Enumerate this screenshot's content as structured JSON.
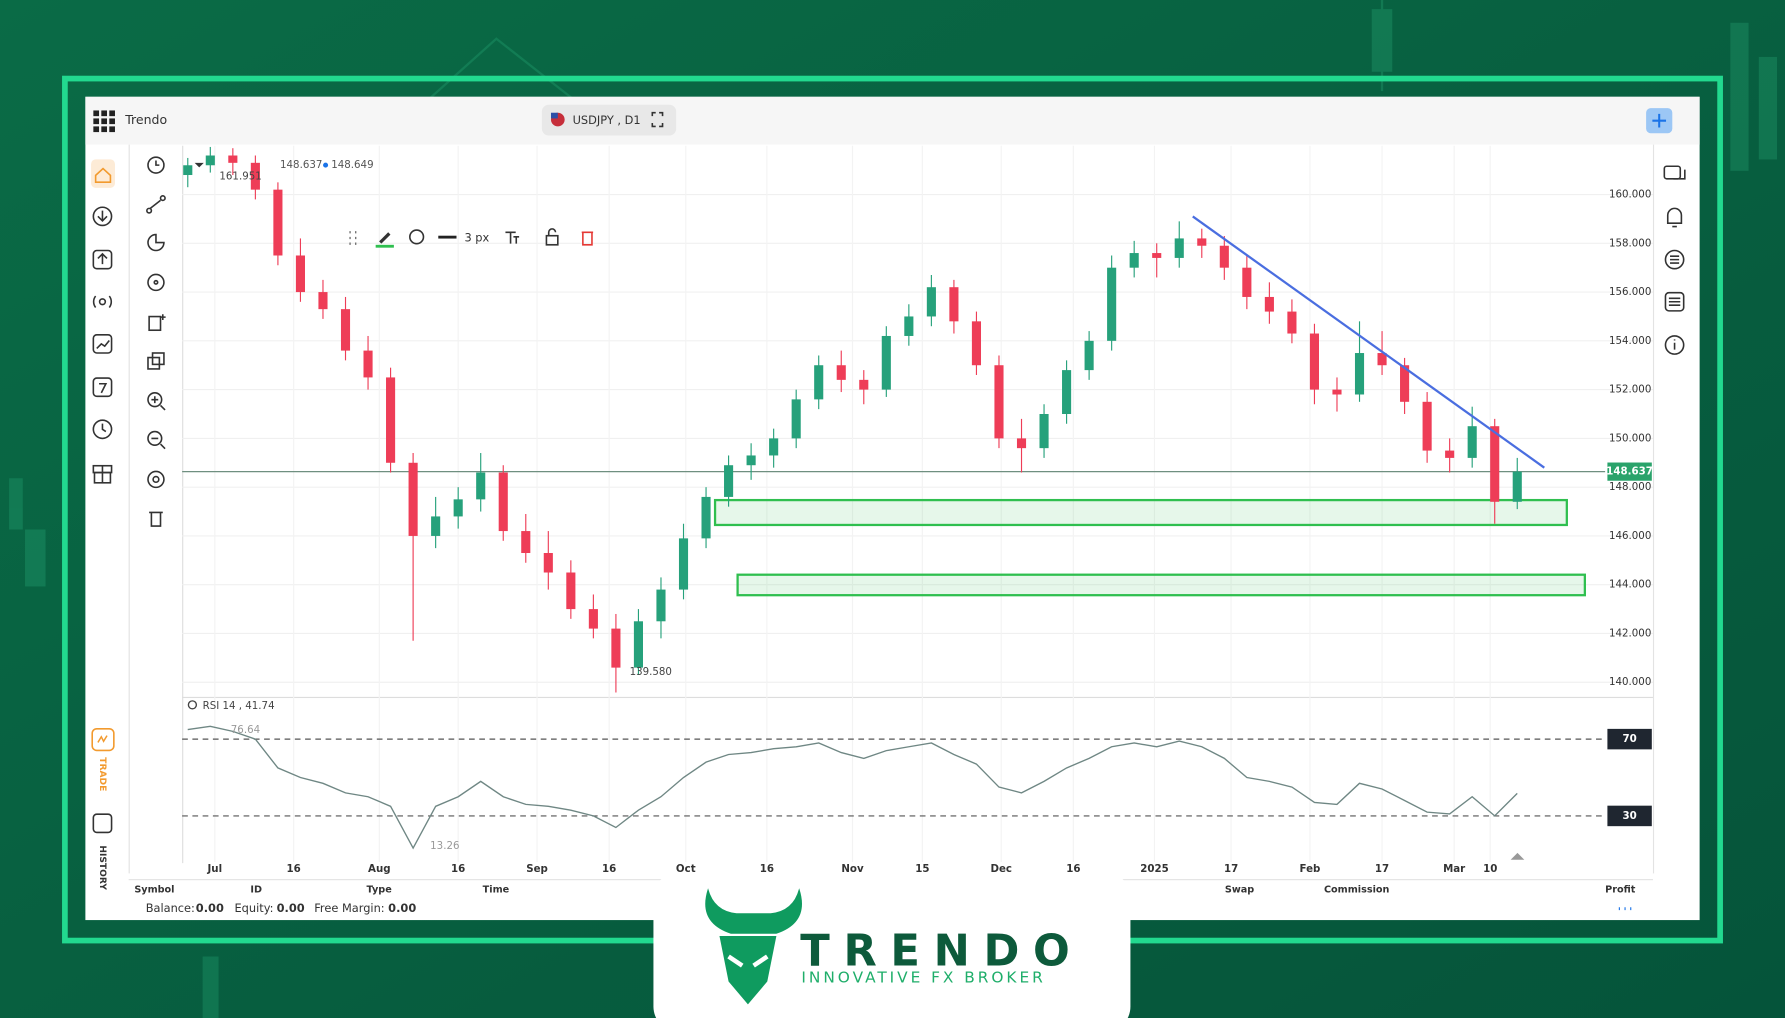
{
  "header": {
    "brand": "Trendo",
    "symbol": "USDJPY , D1"
  },
  "drawing_toolbar": {
    "line_width": "3 px"
  },
  "chart_data": [
    {
      "type": "candlestick",
      "open": [
        160.8,
        161.2,
        161.6,
        161.3,
        160.2,
        157.5,
        156.0,
        155.3,
        153.6,
        152.5,
        149.0,
        146.0,
        146.8,
        147.5,
        148.6,
        146.2,
        145.3,
        144.5,
        143.0,
        142.2,
        140.6,
        142.5,
        143.8,
        145.9,
        147.6,
        148.9,
        149.3,
        150.0,
        151.6,
        153.0,
        152.4,
        152.0,
        154.2,
        155.0,
        156.2,
        154.8,
        153.0,
        150.0,
        149.6,
        151.0,
        152.8,
        154.0,
        157.0,
        157.6,
        157.4,
        158.2,
        157.9,
        157.0,
        155.8,
        155.2,
        154.3,
        152.0,
        151.8,
        153.5,
        153.0,
        151.5,
        149.5,
        149.2,
        150.5,
        147.4
      ],
      "high": [
        161.5,
        161.951,
        161.9,
        161.6,
        160.5,
        158.2,
        156.5,
        155.8,
        154.2,
        152.9,
        149.4,
        147.6,
        148.0,
        149.4,
        148.9,
        146.9,
        146.2,
        145.0,
        143.6,
        142.8,
        143.0,
        144.3,
        146.5,
        148.0,
        149.3,
        149.8,
        150.4,
        152.0,
        153.4,
        153.6,
        152.8,
        154.6,
        155.5,
        156.7,
        156.5,
        155.2,
        153.4,
        150.8,
        151.4,
        153.2,
        154.4,
        157.5,
        158.1,
        158.0,
        158.9,
        158.6,
        158.3,
        157.5,
        156.4,
        155.7,
        154.7,
        152.5,
        154.8,
        154.4,
        153.3,
        151.9,
        150.0,
        151.3,
        150.8,
        149.2
      ],
      "low": [
        160.3,
        160.9,
        160.8,
        159.8,
        157.1,
        155.6,
        154.9,
        153.2,
        152.0,
        148.6,
        141.7,
        145.5,
        146.3,
        147.0,
        145.8,
        144.9,
        143.8,
        142.6,
        141.8,
        139.58,
        140.3,
        141.8,
        143.4,
        145.5,
        147.2,
        148.3,
        148.8,
        149.6,
        151.2,
        151.9,
        151.4,
        151.7,
        153.8,
        154.6,
        154.3,
        152.6,
        149.6,
        148.6,
        149.2,
        150.6,
        152.4,
        153.6,
        156.6,
        156.6,
        157.0,
        157.4,
        156.5,
        155.3,
        154.7,
        153.9,
        151.4,
        151.1,
        151.5,
        152.6,
        151.0,
        149.0,
        148.6,
        148.8,
        146.5,
        147.1
      ],
      "close": [
        161.2,
        161.6,
        161.3,
        160.2,
        157.5,
        156.0,
        155.3,
        153.6,
        152.5,
        149.0,
        146.0,
        146.8,
        147.5,
        148.6,
        146.2,
        145.3,
        144.5,
        143.0,
        142.2,
        140.6,
        142.5,
        143.8,
        145.9,
        147.6,
        148.9,
        149.3,
        150.0,
        151.6,
        153.0,
        152.4,
        152.0,
        154.2,
        155.0,
        156.2,
        154.8,
        153.0,
        150.0,
        149.6,
        151.0,
        152.8,
        154.0,
        157.0,
        157.6,
        157.4,
        158.2,
        157.9,
        157.0,
        155.8,
        155.2,
        154.3,
        152.0,
        151.8,
        153.5,
        153.0,
        151.5,
        149.5,
        149.2,
        150.5,
        147.4,
        148.637
      ],
      "up_color": "#26a17b",
      "down_color": "#ee3d57",
      "xlim": [
        -0.25,
        62.9
      ],
      "xticks": [
        {
          "value": 1.2,
          "label": "Jul"
        },
        {
          "value": 4.7,
          "label": "16"
        },
        {
          "value": 8.5,
          "label": "Aug"
        },
        {
          "value": 12.0,
          "label": "16"
        },
        {
          "value": 15.5,
          "label": "Sep"
        },
        {
          "value": 18.7,
          "label": "16"
        },
        {
          "value": 22.1,
          "label": "Oct"
        },
        {
          "value": 25.7,
          "label": "16"
        },
        {
          "value": 29.5,
          "label": "Nov"
        },
        {
          "value": 32.6,
          "label": "15"
        },
        {
          "value": 36.1,
          "label": "Dec"
        },
        {
          "value": 39.3,
          "label": "16"
        },
        {
          "value": 42.9,
          "label": "2025"
        },
        {
          "value": 46.3,
          "label": "17"
        },
        {
          "value": 49.8,
          "label": "Feb"
        },
        {
          "value": 53.0,
          "label": "17"
        },
        {
          "value": 56.2,
          "label": "Mar"
        },
        {
          "value": 57.8,
          "label": "10"
        }
      ],
      "ylim": [
        139.4,
        162.0
      ],
      "yticks": [
        {
          "value": 140,
          "label": "140.000"
        },
        {
          "value": 142,
          "label": "142.000"
        },
        {
          "value": 144,
          "label": "144.000"
        },
        {
          "value": 146,
          "label": "146.000"
        },
        {
          "value": 148,
          "label": "148.000"
        },
        {
          "value": 150,
          "label": "150.000"
        },
        {
          "value": 152,
          "label": "152.000"
        },
        {
          "value": 154,
          "label": "154.000"
        },
        {
          "value": 156,
          "label": "156.000"
        },
        {
          "value": 158,
          "label": "158.000"
        },
        {
          "value": 160,
          "label": "160.000"
        }
      ],
      "grid": true,
      "bid": 148.637,
      "ask": 148.649,
      "last_price": 148.637,
      "last_price_color": "#2aa36b",
      "max_label": "161.951",
      "min_label": "139.580",
      "trendline": {
        "x": [
          44.6,
          60.2
        ],
        "y": [
          159.1,
          148.8
        ],
        "color": "#4a6ee0"
      },
      "zone_color": "#2fbf4f",
      "zones": [
        {
          "x": [
            23.4,
            61.2
          ],
          "y": [
            146.45,
            147.47
          ]
        },
        {
          "x": [
            24.4,
            62.0
          ],
          "y": [
            143.57,
            144.41
          ]
        }
      ]
    },
    {
      "type": "line",
      "title": "RSI 14 , 41.74",
      "values": [
        75,
        76.64,
        74,
        70,
        55,
        50,
        47,
        42,
        40,
        35,
        13.26,
        35,
        40,
        48,
        40,
        36,
        35,
        33,
        30,
        24,
        33,
        40,
        50,
        58,
        62,
        63,
        65,
        66,
        68,
        63,
        60,
        64,
        66,
        68,
        62,
        57,
        45,
        42,
        48,
        55,
        60,
        66,
        68,
        66,
        69,
        66,
        60,
        50,
        48,
        45,
        37,
        36,
        47,
        44,
        38,
        32,
        31,
        40,
        30,
        41.74
      ],
      "color": "#6f8784",
      "xlim": [
        -0.25,
        62.9
      ],
      "ylim": [
        6,
        92
      ],
      "yticks": [
        70,
        30
      ],
      "max_label": "76.64",
      "min_label": "13.26"
    }
  ],
  "positions_table": {
    "columns": [
      "Symbol",
      "ID",
      "Type",
      "Time",
      "Swap",
      "Commission",
      "Profit"
    ]
  },
  "account": {
    "balance_label": "Balance:",
    "balance": "0.00",
    "equity_label": "Equity:",
    "equity": "0.00",
    "free_margin_label": "Free Margin:",
    "free_margin": "0.00"
  },
  "logo": {
    "name": "TRENDO",
    "tagline": "INNOVATIVE FX BROKER"
  }
}
